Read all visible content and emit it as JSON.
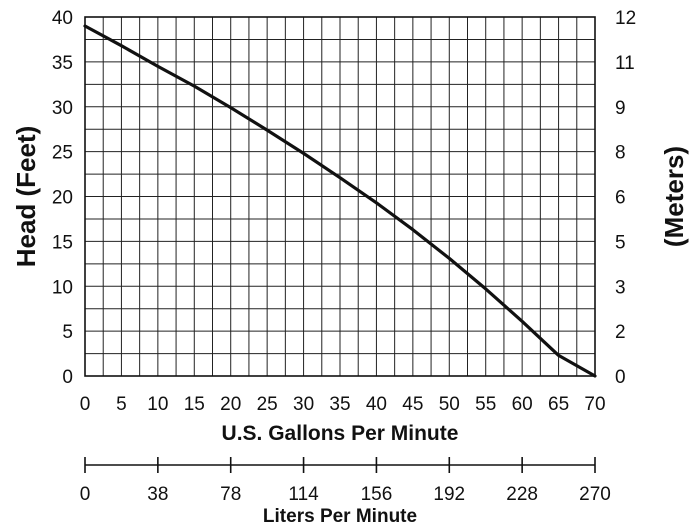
{
  "chart_data": {
    "type": "line",
    "x_axis": {
      "label": "U.S. Gallons Per Minute",
      "min": 0,
      "max": 70,
      "ticks": [
        "0",
        "5",
        "10",
        "15",
        "20",
        "25",
        "30",
        "35",
        "40",
        "45",
        "50",
        "55",
        "60",
        "65",
        "70"
      ],
      "grid_step": 2.5
    },
    "y_axis_left": {
      "label": "Head (Feet)",
      "min": 0,
      "max": 40,
      "ticks": [
        "0",
        "5",
        "10",
        "15",
        "20",
        "25",
        "30",
        "35",
        "40"
      ],
      "grid_step": 2.5
    },
    "y_axis_right": {
      "label": "(Meters)",
      "ticks": [
        {
          "label": "0",
          "feet": 0
        },
        {
          "label": "2",
          "feet": 5
        },
        {
          "label": "3",
          "feet": 10
        },
        {
          "label": "5",
          "feet": 15
        },
        {
          "label": "6",
          "feet": 20
        },
        {
          "label": "8",
          "feet": 25
        },
        {
          "label": "9",
          "feet": 30
        },
        {
          "label": "11",
          "feet": 35
        },
        {
          "label": "12",
          "feet": 40
        }
      ]
    },
    "secondary_x_axis": {
      "label": "Liters Per Minute",
      "ticks": [
        {
          "label": "0",
          "gpm": 0
        },
        {
          "label": "38",
          "gpm": 10
        },
        {
          "label": "78",
          "gpm": 20
        },
        {
          "label": "114",
          "gpm": 30
        },
        {
          "label": "156",
          "gpm": 40
        },
        {
          "label": "192",
          "gpm": 50
        },
        {
          "label": "228",
          "gpm": 60
        },
        {
          "label": "270",
          "gpm": 70
        }
      ]
    },
    "grid": true,
    "series": [
      {
        "x": [
          0,
          5,
          10,
          15,
          20,
          25,
          30,
          35,
          40,
          45,
          50,
          55,
          60,
          65,
          70
        ],
        "y": [
          39,
          36.8,
          34.5,
          32.3,
          29.9,
          27.4,
          24.8,
          22.1,
          19.3,
          16.3,
          13.1,
          9.7,
          6.1,
          2.3,
          0
        ],
        "color": "#111111"
      }
    ]
  }
}
